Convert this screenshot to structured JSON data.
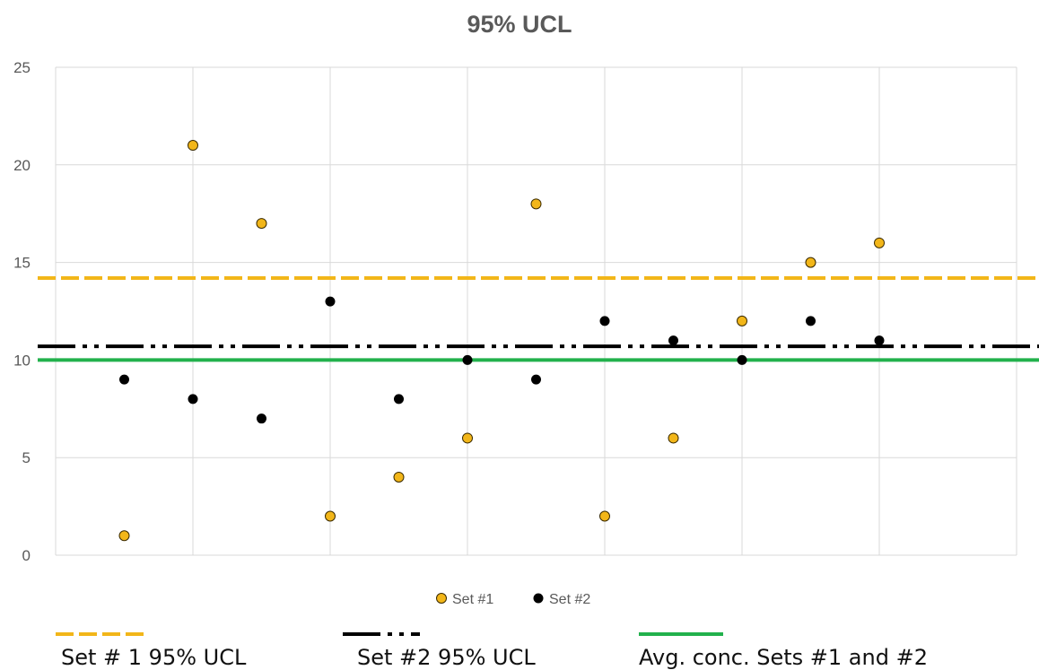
{
  "chart_data": {
    "type": "scatter",
    "title": "95% UCL",
    "xlabel": "",
    "ylabel": "",
    "xlim": [
      0,
      14
    ],
    "ylim": [
      0,
      25
    ],
    "yticks": [
      0,
      5,
      10,
      15,
      20,
      25
    ],
    "grid": "vertical and horizontal",
    "series": [
      {
        "name": "Set #1",
        "color": "#F2B619",
        "points": [
          [
            1,
            1
          ],
          [
            2,
            21
          ],
          [
            3,
            17
          ],
          [
            4,
            2
          ],
          [
            5,
            4
          ],
          [
            6,
            6
          ],
          [
            7,
            18
          ],
          [
            8,
            2
          ],
          [
            9,
            6
          ],
          [
            10,
            12
          ],
          [
            11,
            15
          ],
          [
            12,
            16
          ]
        ]
      },
      {
        "name": "Set #2",
        "color": "#000000",
        "points": [
          [
            1,
            9
          ],
          [
            2,
            8
          ],
          [
            3,
            7
          ],
          [
            4,
            13
          ],
          [
            5,
            8
          ],
          [
            6,
            10
          ],
          [
            7,
            9
          ],
          [
            8,
            12
          ],
          [
            9,
            11
          ],
          [
            10,
            10
          ],
          [
            11,
            12
          ],
          [
            12,
            11
          ]
        ]
      }
    ],
    "reference_lines": [
      {
        "name": "Set # 1 95% UCL",
        "value": 14.2,
        "color": "#F2B619",
        "style": "dashed"
      },
      {
        "name": "Set #2 95% UCL",
        "value": 10.7,
        "color": "#000000",
        "style": "long-dash-dot-dot"
      },
      {
        "name": "Avg. conc. Sets #1 and #2",
        "value": 10,
        "color": "#22B14C",
        "style": "solid"
      }
    ],
    "legend_position": "bottom"
  }
}
